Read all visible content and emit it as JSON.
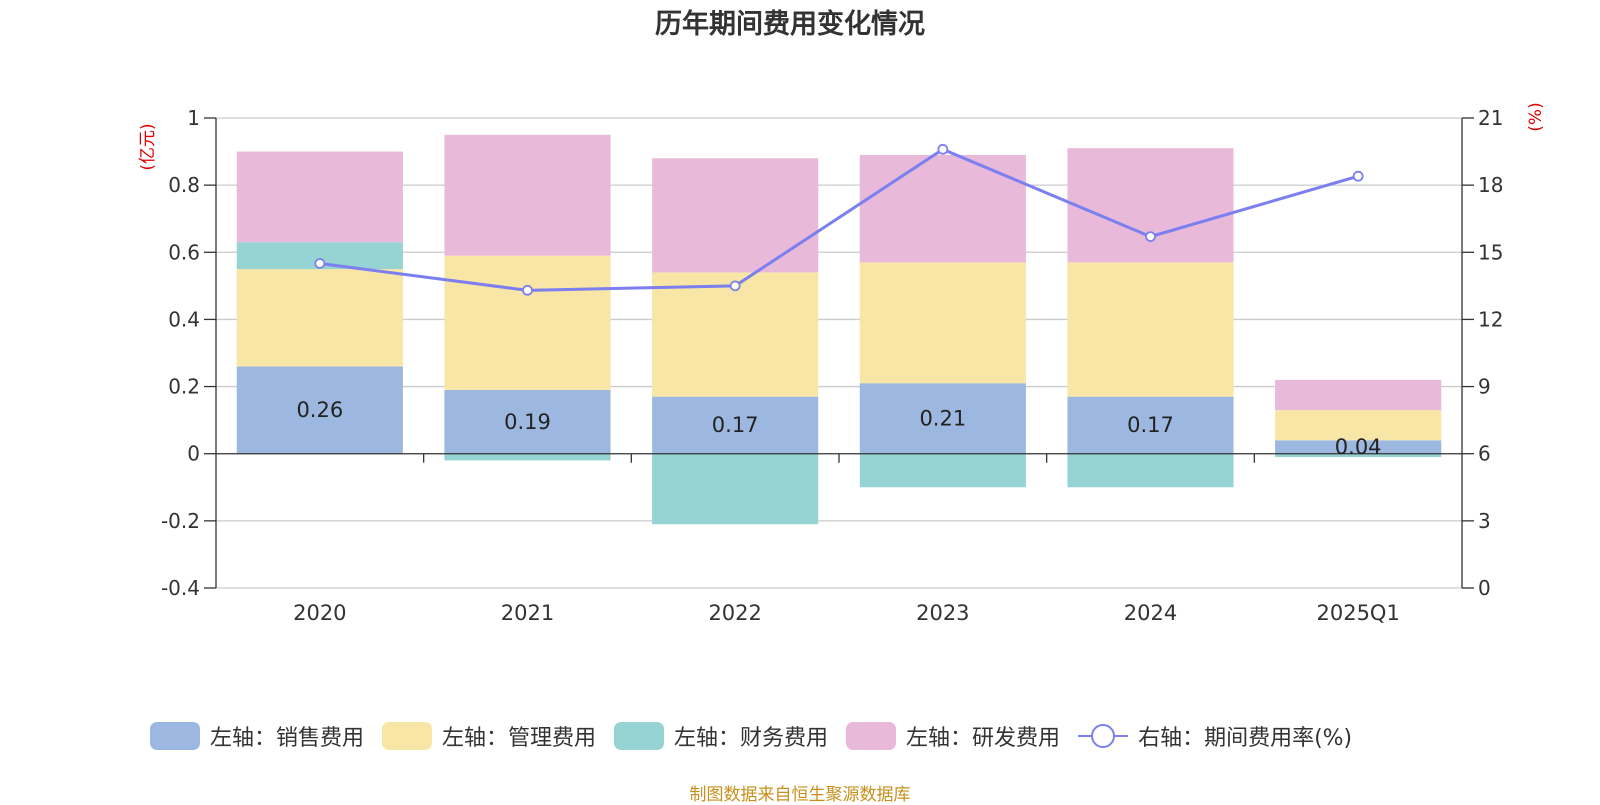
{
  "chart_data": {
    "type": "bar",
    "title": "历年期间费用变化情况",
    "left_axis_unit": "(亿元)",
    "right_axis_unit": "(%)",
    "categories": [
      "2020",
      "2021",
      "2022",
      "2023",
      "2024",
      "2025Q1"
    ],
    "left_ylim": [
      -0.4,
      1
    ],
    "left_ticks": [
      1,
      0.8,
      0.6,
      0.4,
      0.2,
      0,
      -0.2,
      -0.4
    ],
    "left_tick_labels": [
      "1",
      "0.8",
      "0.6",
      "0.4",
      "0.2",
      "0",
      "-0.2",
      "-0.4"
    ],
    "right_ylim": [
      0,
      21
    ],
    "right_ticks": [
      21,
      18,
      15,
      12,
      9,
      6,
      3,
      0
    ],
    "right_tick_labels": [
      "21",
      "18",
      "15",
      "12",
      "9",
      "6",
      "3",
      "0"
    ],
    "series": [
      {
        "name": "左轴：销售费用",
        "axis": "left",
        "kind": "bar",
        "color": "#9db8e0",
        "values": [
          0.26,
          0.19,
          0.17,
          0.21,
          0.17,
          0.04
        ],
        "labels": [
          "0.26",
          "0.19",
          "0.17",
          "0.21",
          "0.17",
          "0.04"
        ]
      },
      {
        "name": "左轴：管理费用",
        "axis": "left",
        "kind": "bar",
        "color": "#f7e6a6",
        "values": [
          0.29,
          0.4,
          0.37,
          0.36,
          0.4,
          0.09
        ]
      },
      {
        "name": "左轴：财务费用",
        "axis": "left",
        "kind": "bar",
        "color": "#96d4d4",
        "values": [
          0.08,
          -0.02,
          -0.21,
          -0.1,
          -0.1,
          -0.01
        ]
      },
      {
        "name": "左轴：研发费用",
        "axis": "left",
        "kind": "bar",
        "color": "#e8b9d9",
        "values": [
          0.27,
          0.36,
          0.34,
          0.32,
          0.34,
          0.09
        ]
      },
      {
        "name": "右轴：期间费用率(%)",
        "axis": "right",
        "kind": "line",
        "color": "#7b7ff0",
        "values": [
          14.5,
          13.3,
          13.5,
          19.6,
          15.7,
          18.4
        ]
      }
    ],
    "grid": true
  },
  "source_text": "制图数据来自恒生聚源数据库"
}
